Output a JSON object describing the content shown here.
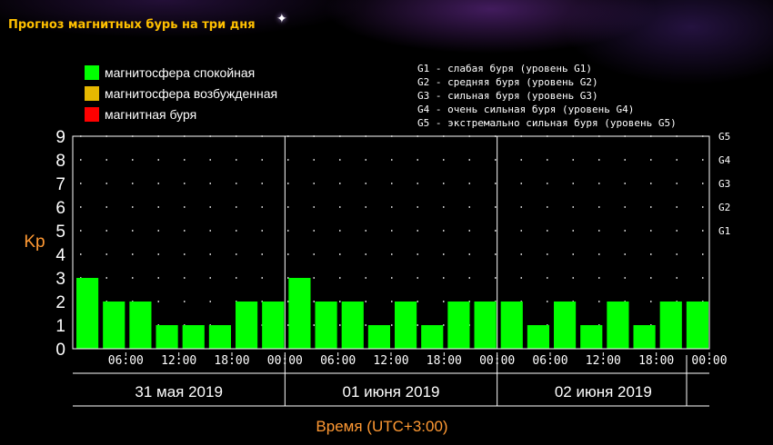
{
  "header": {
    "title": "Прогноз магнитных бурь на три дня"
  },
  "legend": {
    "items": [
      {
        "label": "магнитосфера спокойная",
        "color": "#00ff00"
      },
      {
        "label": "магнитосфера возбужденная",
        "color": "#e6b800"
      },
      {
        "label": "магнитная буря",
        "color": "#ff0000"
      }
    ]
  },
  "g_legend": [
    "G1 - слабая буря (уровень G1)",
    "G2 - средняя буря (уровень G2)",
    "G3 - сильная буря (уровень G3)",
    "G4 - очень сильная буря (уровень G4)",
    "G5 - экстремально сильная буря (уровень G5)"
  ],
  "chart_data": {
    "type": "bar",
    "ylabel": "Kp",
    "xlabel": "Время (UTC+3:00)",
    "ylim": [
      0,
      9
    ],
    "yticks": [
      "0",
      "1",
      "2",
      "3",
      "4",
      "5",
      "6",
      "7",
      "8",
      "9"
    ],
    "right_ticks": [
      {
        "label": "G1",
        "value": 5
      },
      {
        "label": "G2",
        "value": 6
      },
      {
        "label": "G3",
        "value": 7
      },
      {
        "label": "G4",
        "value": 8
      },
      {
        "label": "G5",
        "value": 9
      }
    ],
    "time_ticks": [
      "06:00",
      "12:00",
      "18:00",
      "00:00",
      "06:00",
      "12:00",
      "18:00",
      "00:00",
      "06:00",
      "12:00",
      "18:00",
      "00:00"
    ],
    "days": [
      "31 мая 2019",
      "01 июня 2019",
      "02 июня 2019"
    ],
    "values": [
      3,
      2,
      2,
      1,
      1,
      1,
      2,
      2,
      3,
      2,
      2,
      1,
      2,
      1,
      2,
      2,
      2,
      1,
      2,
      1,
      2,
      1,
      2,
      2
    ],
    "bar_color": "#00ff00",
    "grid": true
  }
}
